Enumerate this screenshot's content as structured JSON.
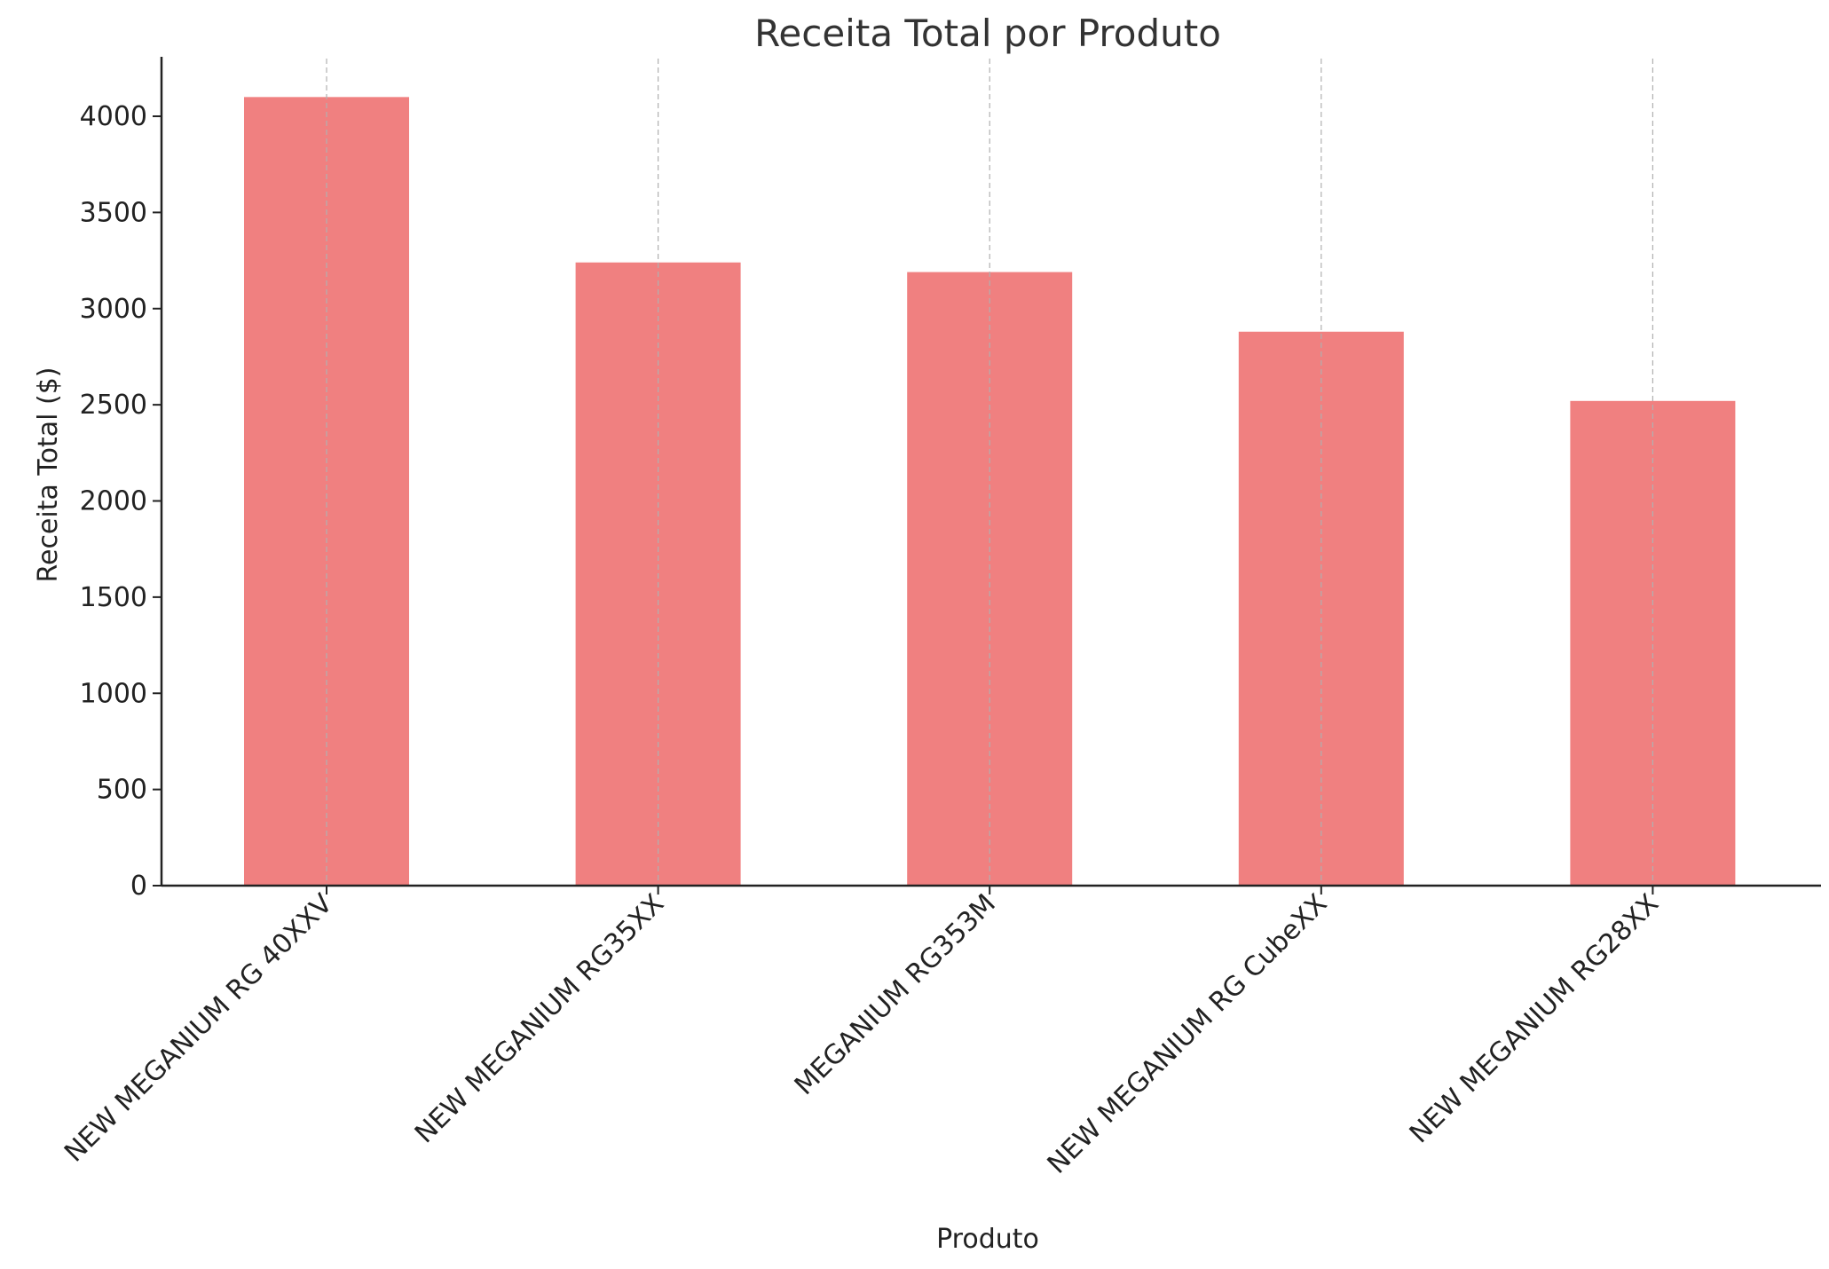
{
  "chart_data": {
    "type": "bar",
    "title": "Receita Total por Produto",
    "xlabel": "Produto",
    "ylabel": "Receita Total ($)",
    "categories": [
      "NEW MEGANIUM RG 40XXV",
      "NEW MEGANIUM RG35XX",
      "MEGANIUM RG353M",
      "NEW MEGANIUM RG CubeXX",
      "NEW MEGANIUM RG28XX"
    ],
    "values": [
      4100,
      3240,
      3190,
      2880,
      2520
    ],
    "ylim": [
      0,
      4300
    ],
    "yticks": [
      0,
      500,
      1000,
      1500,
      2000,
      2500,
      3000,
      3500,
      4000
    ],
    "grid": "vertical dashed",
    "colors": {
      "bar": "#f08080",
      "axis": "#222222",
      "grid": "#b0b0b0",
      "title": "#333333"
    }
  }
}
